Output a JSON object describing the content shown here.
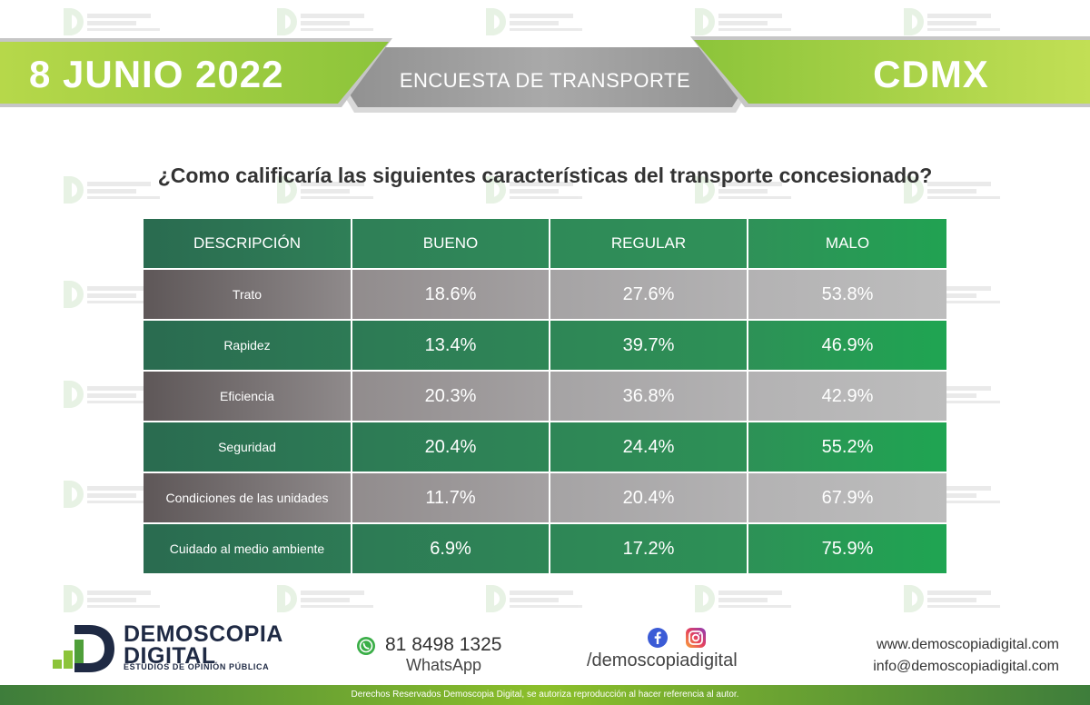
{
  "header": {
    "date": "8 JUNIO 2022",
    "survey_title": "ENCUESTA DE TRANSPORTE",
    "city": "CDMX"
  },
  "question": "¿Como calificaría las siguientes características del transporte concesionado?",
  "table": {
    "columns": [
      "DESCRIPCIÓN",
      "BUENO",
      "REGULAR",
      "MALO"
    ],
    "rows": [
      {
        "label": "Trato",
        "bueno": "18.6%",
        "regular": "27.6%",
        "malo": "53.8%"
      },
      {
        "label": "Rapidez",
        "bueno": "13.4%",
        "regular": "39.7%",
        "malo": "46.9%"
      },
      {
        "label": "Eficiencia",
        "bueno": "20.3%",
        "regular": "36.8%",
        "malo": "42.9%"
      },
      {
        "label": "Seguridad",
        "bueno": "20.4%",
        "regular": "24.4%",
        "malo": "55.2%"
      },
      {
        "label": "Condiciones de las unidades",
        "bueno": "11.7%",
        "regular": "20.4%",
        "malo": "67.9%"
      },
      {
        "label": "Cuidado al medio ambiente",
        "bueno": "6.9%",
        "regular": "17.2%",
        "malo": "75.9%"
      }
    ]
  },
  "footer": {
    "brand_line1": "DEMOSCOPIA",
    "brand_line2": "DIGITAL",
    "brand_tagline": "ESTUDIOS DE OPINIÓN PÚBLICA",
    "whatsapp_number": "81 8498 1325",
    "whatsapp_label": "WhatsApp",
    "social_handle": "/demoscopiadigital",
    "website": "www.demoscopiadigital.com",
    "email": "info@demoscopiadigital.com",
    "copyright": "Derechos Reservados Demoscopia Digital, se autoriza reproducción al hacer referencia al autor."
  },
  "icons": [
    "whatsapp-icon",
    "facebook-icon",
    "instagram-icon",
    "logo-d-mark"
  ],
  "colors": {
    "lime": "#8cc43a",
    "dark_green": "#2a6b50",
    "bright_green": "#1fa552",
    "gray": "#a5a3a4",
    "navy": "#1f2a44"
  }
}
